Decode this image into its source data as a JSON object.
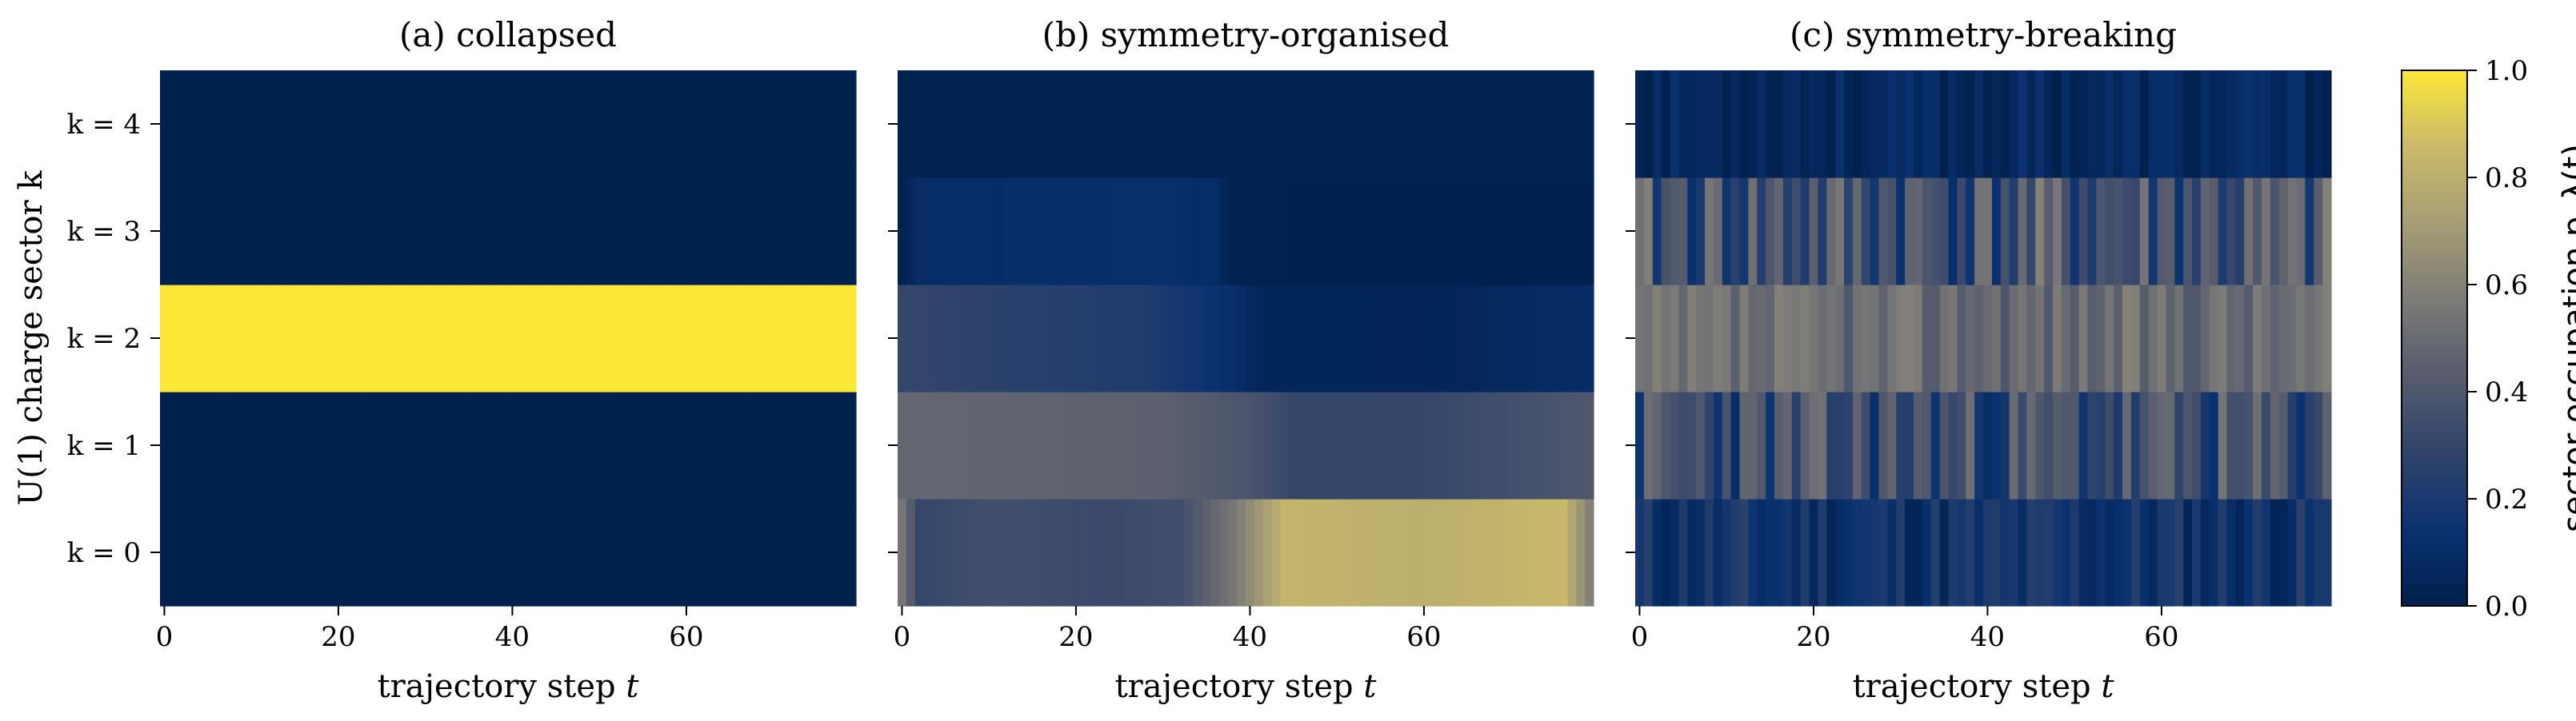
{
  "chart_data": [
    {
      "type": "heatmap",
      "title": "(a) collapsed",
      "xlabel": "trajectory step t",
      "ylabel": "U(1) charge sector k",
      "x_range": [
        0,
        79
      ],
      "x_ticks": [
        "0",
        "20",
        "40",
        "60"
      ],
      "y_categories": [
        "k = 0",
        "k = 1",
        "k = 2",
        "k = 3",
        "k = 4"
      ],
      "pattern": "constant",
      "rows": [
        [
          0.0
        ],
        [
          0.0
        ],
        [
          1.0
        ],
        [
          0.0
        ],
        [
          0.0
        ]
      ]
    },
    {
      "type": "heatmap",
      "title": "(b) symmetry-organised",
      "xlabel": "trajectory step t",
      "x_range": [
        0,
        79
      ],
      "x_ticks": [
        "0",
        "20",
        "40",
        "60"
      ],
      "y_categories": [
        "k = 0",
        "k = 1",
        "k = 2",
        "k = 3",
        "k = 4"
      ],
      "pattern": "piecewise",
      "rows": [
        [
          [
            0,
            0.55
          ],
          [
            2,
            0.3
          ],
          [
            10,
            0.35
          ],
          [
            24,
            0.32
          ],
          [
            32,
            0.35
          ],
          [
            38,
            0.55
          ],
          [
            44,
            0.83
          ],
          [
            60,
            0.8
          ],
          [
            76,
            0.85
          ],
          [
            79,
            0.6
          ]
        ],
        [
          [
            0,
            0.48
          ],
          [
            30,
            0.45
          ],
          [
            40,
            0.38
          ],
          [
            45,
            0.3
          ],
          [
            60,
            0.3
          ],
          [
            79,
            0.4
          ]
        ],
        [
          [
            0,
            0.3
          ],
          [
            8,
            0.27
          ],
          [
            28,
            0.22
          ],
          [
            38,
            0.12
          ],
          [
            41,
            0.05
          ],
          [
            60,
            0.04
          ],
          [
            79,
            0.1
          ]
        ],
        [
          [
            0,
            0.02
          ],
          [
            2,
            0.1
          ],
          [
            30,
            0.12
          ],
          [
            36,
            0.1
          ],
          [
            38,
            0.02
          ],
          [
            79,
            0.01
          ]
        ],
        [
          [
            0,
            0.02
          ],
          [
            40,
            0.02
          ],
          [
            79,
            0.02
          ]
        ]
      ]
    },
    {
      "type": "heatmap",
      "title": "(c) symmetry-breaking",
      "xlabel": "trajectory step t",
      "x_range": [
        0,
        79
      ],
      "x_ticks": [
        "0",
        "20",
        "40",
        "60"
      ],
      "y_categories": [
        "k = 0",
        "k = 1",
        "k = 2",
        "k = 3",
        "k = 4"
      ],
      "pattern": "fluctuating",
      "rows": [
        {
          "mean": 0.15,
          "amp": 0.12,
          "seed": 11
        },
        {
          "mean": 0.32,
          "amp": 0.22,
          "seed": 23
        },
        {
          "mean": 0.5,
          "amp": 0.1,
          "seed": 37
        },
        {
          "mean": 0.35,
          "amp": 0.25,
          "seed": 41
        },
        {
          "mean": 0.07,
          "amp": 0.07,
          "seed": 53
        }
      ]
    }
  ],
  "colorbar": {
    "label": "sector occupation p_λ(t)",
    "range": [
      0.0,
      1.0
    ],
    "ticks": [
      "0.0",
      "0.2",
      "0.4",
      "0.6",
      "0.8",
      "1.0"
    ],
    "colormap": "cividis",
    "colors": [
      "#00204d",
      "#0a3270",
      "#31446b",
      "#575c6d",
      "#7c7b78",
      "#a59c74",
      "#cbba69",
      "#fde737"
    ]
  }
}
